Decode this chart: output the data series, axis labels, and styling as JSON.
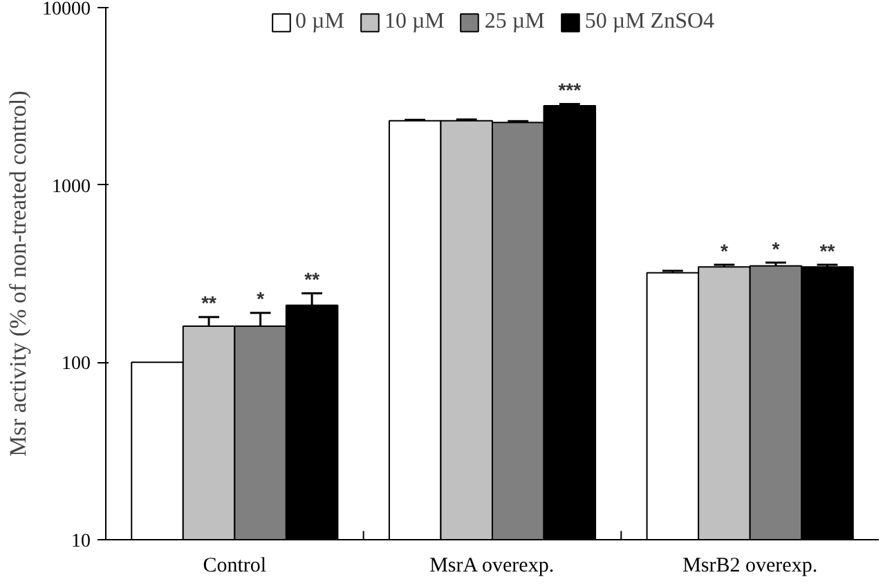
{
  "chart_data": {
    "type": "bar",
    "ylabel": "Msr activity (% of non-treated control)",
    "categories": [
      "Control",
      "MsrA overexp.",
      "MsrB2 overexp."
    ],
    "series": [
      {
        "name": "0 µM",
        "color": "#ffffff",
        "values": [
          100,
          2300,
          320
        ],
        "errors": [
          null,
          30,
          8
        ]
      },
      {
        "name": "10 µM",
        "color": "#c0c0c0",
        "values": [
          160,
          2300,
          345
        ],
        "errors": [
          20,
          40,
          10
        ],
        "value_labels": [
          "**",
          null,
          "*"
        ]
      },
      {
        "name": "25 µM",
        "color": "#808080",
        "values": [
          160,
          2250,
          350
        ],
        "errors": [
          30,
          40,
          15
        ],
        "value_labels": [
          "*",
          null,
          "*"
        ]
      },
      {
        "name": "50 µM ZnSO4",
        "color": "#000000",
        "values": [
          210,
          2800,
          345
        ],
        "errors": [
          35,
          60,
          10
        ],
        "value_labels": [
          "**",
          "***",
          "**"
        ]
      }
    ],
    "log": "y",
    "ylim": [
      10,
      10000
    ],
    "yticks": [
      10,
      100,
      1000,
      10000
    ],
    "grid": false,
    "legend": "top"
  }
}
